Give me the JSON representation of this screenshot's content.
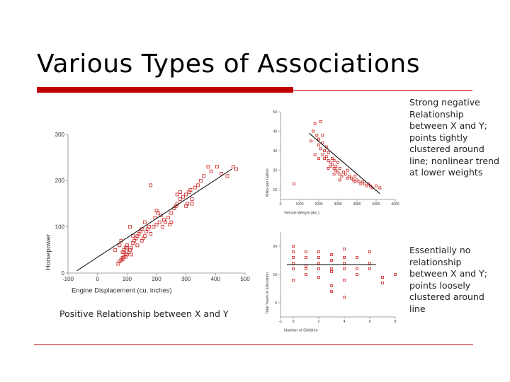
{
  "slide": {
    "title": "Various Types of Associations",
    "caption_left": "Positive Relationship between X and Y",
    "caption_right_top": "Strong negative Relationship between X and Y; points tightly clustered around line; nonlinear trend at lower weights",
    "caption_right_bottom": "Essentially no relationship between X and Y; points loosely clustered around line"
  },
  "colors": {
    "accent": "#c00000",
    "marker": "#cc2222"
  },
  "chart_data": [
    {
      "type": "scatter",
      "title": "",
      "xlabel": "Engine Displacement (cu. inches)",
      "ylabel": "Horsepower",
      "xlim": [
        -100,
        500
      ],
      "ylim": [
        0,
        300
      ],
      "xticks": [
        "-100",
        "0",
        "100",
        "200",
        "300",
        "400",
        "500"
      ],
      "yticks": [
        "0",
        "100",
        "200",
        "300"
      ],
      "trend_line": [
        [
          -70,
          5
        ],
        [
          455,
          225
        ]
      ],
      "points": [
        [
          70,
          20
        ],
        [
          75,
          25
        ],
        [
          80,
          28
        ],
        [
          85,
          30
        ],
        [
          90,
          35
        ],
        [
          95,
          40
        ],
        [
          85,
          45
        ],
        [
          90,
          50
        ],
        [
          95,
          55
        ],
        [
          100,
          60
        ],
        [
          100,
          40
        ],
        [
          105,
          45
        ],
        [
          110,
          50
        ],
        [
          115,
          55
        ],
        [
          120,
          65
        ],
        [
          125,
          70
        ],
        [
          130,
          75
        ],
        [
          135,
          80
        ],
        [
          140,
          85
        ],
        [
          145,
          90
        ],
        [
          150,
          70
        ],
        [
          155,
          75
        ],
        [
          160,
          80
        ],
        [
          165,
          90
        ],
        [
          170,
          95
        ],
        [
          180,
          85
        ],
        [
          190,
          100
        ],
        [
          200,
          105
        ],
        [
          210,
          110
        ],
        [
          220,
          100
        ],
        [
          230,
          110
        ],
        [
          240,
          120
        ],
        [
          250,
          130
        ],
        [
          260,
          140
        ],
        [
          270,
          150
        ],
        [
          280,
          160
        ],
        [
          290,
          165
        ],
        [
          300,
          170
        ],
        [
          305,
          150
        ],
        [
          310,
          175
        ],
        [
          315,
          180
        ],
        [
          320,
          160
        ],
        [
          330,
          185
        ],
        [
          340,
          190
        ],
        [
          350,
          200
        ],
        [
          360,
          210
        ],
        [
          375,
          230
        ],
        [
          385,
          220
        ],
        [
          405,
          230
        ],
        [
          420,
          215
        ],
        [
          440,
          210
        ],
        [
          460,
          230
        ],
        [
          470,
          225
        ],
        [
          180,
          190
        ],
        [
          60,
          50
        ],
        [
          75,
          60
        ],
        [
          80,
          70
        ],
        [
          90,
          45
        ],
        [
          100,
          55
        ],
        [
          115,
          40
        ],
        [
          135,
          60
        ],
        [
          150,
          95
        ],
        [
          250,
          110
        ],
        [
          270,
          170
        ],
        [
          200,
          135
        ],
        [
          160,
          110
        ],
        [
          120,
          80
        ],
        [
          110,
          100
        ],
        [
          95,
          35
        ],
        [
          85,
          33
        ],
        [
          300,
          145
        ],
        [
          320,
          150
        ],
        [
          280,
          175
        ],
        [
          265,
          145
        ],
        [
          225,
          115
        ],
        [
          245,
          105
        ],
        [
          215,
          125
        ],
        [
          175,
          100
        ],
        [
          195,
          120
        ],
        [
          205,
          130
        ]
      ]
    },
    {
      "type": "scatter",
      "title": "",
      "xlabel": "Vehicle Weight (lbs.)",
      "ylabel": "Miles per Gallon",
      "xlim": [
        0,
        6000
      ],
      "ylim": [
        5,
        50
      ],
      "xticks": [
        "0",
        "1000",
        "2000",
        "3000",
        "4000",
        "5000",
        "6000"
      ],
      "yticks": [
        "10",
        "20",
        "30",
        "40",
        "50"
      ],
      "trend_line": [
        [
          1500,
          39
        ],
        [
          5200,
          8
        ]
      ],
      "points": [
        [
          1600,
          35
        ],
        [
          1700,
          40
        ],
        [
          1800,
          44
        ],
        [
          1900,
          38
        ],
        [
          2000,
          33
        ],
        [
          2000,
          36
        ],
        [
          2100,
          31
        ],
        [
          2100,
          45
        ],
        [
          2200,
          28
        ],
        [
          2200,
          34
        ],
        [
          2300,
          30
        ],
        [
          2300,
          26
        ],
        [
          2400,
          27
        ],
        [
          2400,
          32
        ],
        [
          2500,
          25
        ],
        [
          2500,
          29
        ],
        [
          2600,
          24
        ],
        [
          2600,
          22
        ],
        [
          2700,
          26
        ],
        [
          2700,
          23
        ],
        [
          2800,
          21
        ],
        [
          2800,
          25
        ],
        [
          2900,
          20
        ],
        [
          2900,
          22
        ],
        [
          3000,
          19
        ],
        [
          3000,
          24
        ],
        [
          3100,
          18
        ],
        [
          3100,
          21
        ],
        [
          3200,
          17
        ],
        [
          3300,
          19
        ],
        [
          3400,
          18
        ],
        [
          3500,
          16
        ],
        [
          3600,
          17
        ],
        [
          3700,
          16
        ],
        [
          3800,
          15
        ],
        [
          3900,
          14
        ],
        [
          4000,
          15
        ],
        [
          4100,
          14
        ],
        [
          4200,
          13
        ],
        [
          4300,
          14
        ],
        [
          4400,
          13
        ],
        [
          4500,
          12
        ],
        [
          4600,
          13
        ],
        [
          4700,
          12
        ],
        [
          4800,
          11
        ],
        [
          5000,
          12
        ],
        [
          5200,
          11
        ],
        [
          1800,
          28
        ],
        [
          2000,
          26
        ],
        [
          2200,
          38
        ],
        [
          2500,
          21
        ],
        [
          2800,
          18
        ],
        [
          3100,
          15
        ],
        [
          3500,
          20
        ],
        [
          3900,
          17
        ],
        [
          700,
          13
        ]
      ]
    },
    {
      "type": "scatter",
      "title": "",
      "xlabel": "Number of Children",
      "ylabel": "Total Years of Education",
      "xlim": [
        -1,
        8
      ],
      "ylim": [
        -5,
        25
      ],
      "xticks": [
        "-1",
        "0",
        "2",
        "4",
        "6",
        "8"
      ],
      "yticks": [
        "0",
        "10",
        "20"
      ],
      "trend_line": [
        [
          -0.5,
          13.5
        ],
        [
          6.5,
          13.5
        ]
      ],
      "points": [
        [
          0,
          8
        ],
        [
          0,
          12
        ],
        [
          0,
          14
        ],
        [
          0,
          16
        ],
        [
          0,
          18
        ],
        [
          0,
          20
        ],
        [
          1,
          10
        ],
        [
          1,
          12
        ],
        [
          1,
          13
        ],
        [
          1,
          16
        ],
        [
          1,
          18
        ],
        [
          2,
          9
        ],
        [
          2,
          12
        ],
        [
          2,
          14
        ],
        [
          2,
          16
        ],
        [
          2,
          18
        ],
        [
          3,
          11
        ],
        [
          3,
          12
        ],
        [
          3,
          15
        ],
        [
          3,
          17
        ],
        [
          3,
          4
        ],
        [
          4,
          2
        ],
        [
          4,
          8
        ],
        [
          4,
          12
        ],
        [
          4,
          14
        ],
        [
          4,
          16
        ],
        [
          4,
          19
        ],
        [
          5,
          10
        ],
        [
          5,
          12
        ],
        [
          5,
          16
        ],
        [
          6,
          12
        ],
        [
          6,
          14
        ],
        [
          6,
          18
        ],
        [
          7,
          7
        ],
        [
          7,
          9
        ],
        [
          8,
          10
        ],
        [
          3,
          6
        ]
      ]
    }
  ]
}
